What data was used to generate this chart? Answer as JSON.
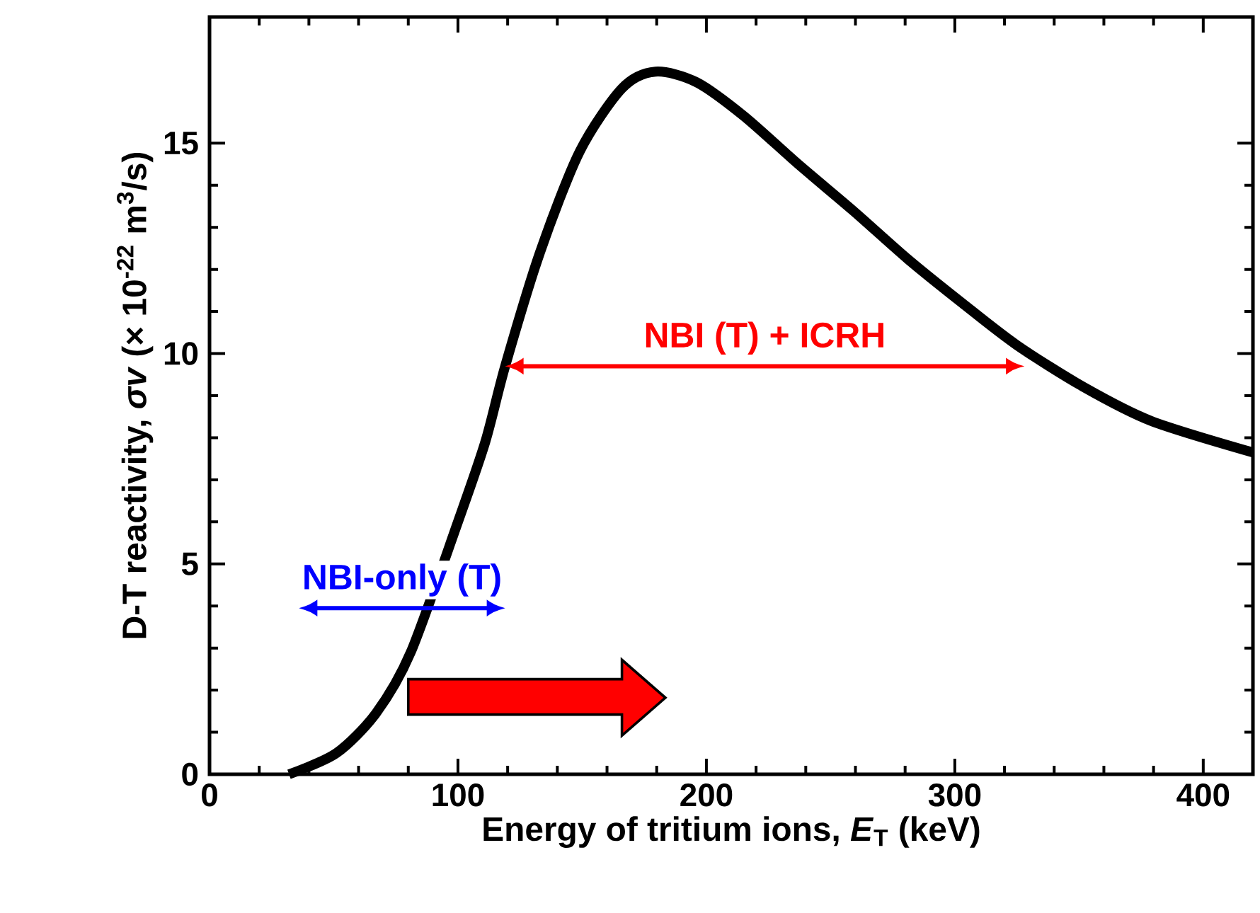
{
  "chart_data": {
    "type": "line",
    "xlabel": "Energy of tritium ions, *E*$_{T}$ (keV)",
    "ylabel": "D-T reactivity, *σv*  (× 10$^{-22}$ m$^{3}$/s)",
    "x": [
      32,
      51,
      67,
      81,
      100,
      111,
      119,
      133,
      149,
      166,
      179.5,
      196,
      215,
      237,
      259,
      281,
      303,
      325,
      352,
      379,
      420
    ],
    "series": [
      {
        "color": "#000000",
        "values": [
          0,
          0.5,
          1.45,
          2.9,
          6.0,
          7.9,
          9.7,
          12.4,
          14.8,
          16.3,
          16.7,
          16.45,
          15.65,
          14.5,
          13.4,
          12.25,
          11.2,
          10.2,
          9.2,
          8.4,
          7.65
        ]
      }
    ],
    "xlim": [
      0,
      420
    ],
    "ylim": [
      0,
      18
    ],
    "xticks": [
      0,
      100,
      200,
      300,
      400
    ],
    "yticks": [
      0,
      5,
      10,
      15
    ],
    "grid": false,
    "marker": "none",
    "line_style": "solid",
    "annotations": [
      "NBI (T) + ICRH",
      "NBI-only (T)"
    ]
  }
}
